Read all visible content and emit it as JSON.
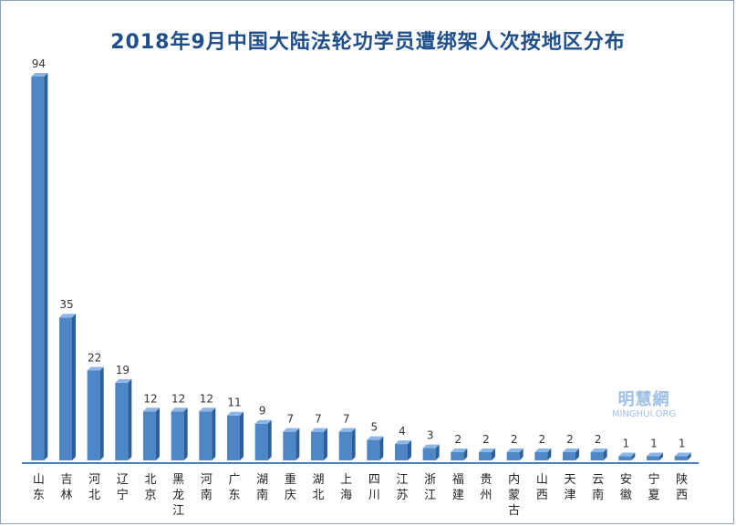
{
  "chart_data": {
    "type": "bar",
    "title": "2018年9月中国大陆法轮功学员遭绑架人次按地区分布",
    "categories": [
      "山东",
      "吉林",
      "河北",
      "辽宁",
      "北京",
      "黑龙江",
      "河南",
      "广东",
      "湖南",
      "重庆",
      "湖北",
      "上海",
      "四川",
      "江苏",
      "浙江",
      "福建",
      "贵州",
      "内蒙古",
      "山西",
      "天津",
      "云南",
      "安徽",
      "宁夏",
      "陕西"
    ],
    "values": [
      94,
      35,
      22,
      19,
      12,
      12,
      12,
      11,
      9,
      7,
      7,
      7,
      5,
      4,
      3,
      2,
      2,
      2,
      2,
      2,
      2,
      1,
      1,
      1
    ],
    "xlabel": "",
    "ylabel": "",
    "ylim": [
      0,
      94
    ],
    "grid": false,
    "legend": "none",
    "colors": {
      "bar": "#4f86c6",
      "bar_side": "#2e5f99",
      "bar_top": "#8cb6e8",
      "axis": "#4a7fc4",
      "title": "#1f4e8c"
    }
  },
  "watermark": {
    "cn": "明慧網",
    "en": "MINGHUI.ORG"
  }
}
